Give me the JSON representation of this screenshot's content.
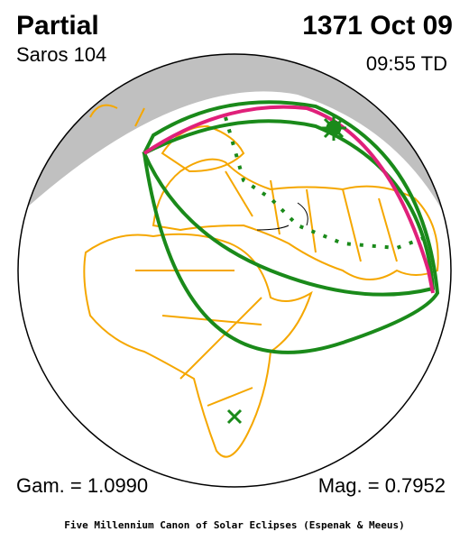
{
  "header": {
    "title": "Partial",
    "date": "1371 Oct 09",
    "saros": "Saros 104",
    "time": "09:55 TD"
  },
  "footer": {
    "gamma": "Gam. = 1.0990",
    "magnitude": "Mag. = 0.7952",
    "credit": "Five Millennium Canon of Solar Eclipses (Espenak & Meeus)"
  }
}
